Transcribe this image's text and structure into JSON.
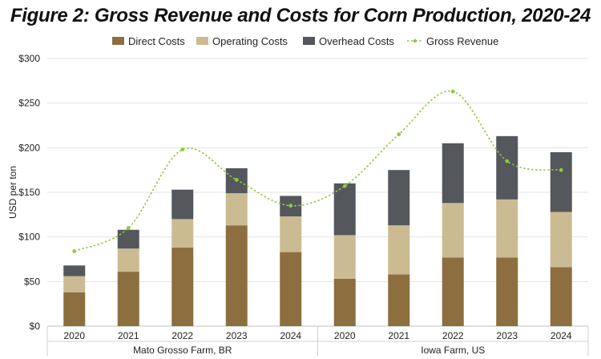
{
  "chart_data": {
    "type": "bar",
    "title": "Figure 2:  Gross Revenue and Costs for Corn Production, 2020-24",
    "ylabel": "USD per ton",
    "xlabel": "",
    "ylim": [
      0,
      300
    ],
    "yticks": [
      0,
      50,
      100,
      150,
      200,
      250,
      300
    ],
    "ytick_labels": [
      "$0",
      "$50",
      "$100",
      "$150",
      "$200",
      "$250",
      "$300"
    ],
    "grid": true,
    "legend_position": "top",
    "groups": [
      {
        "name": "Mato Grosso Farm, BR",
        "categories": [
          "2020",
          "2021",
          "2022",
          "2023",
          "2024"
        ]
      },
      {
        "name": "Iowa Farm, US",
        "categories": [
          "2020",
          "2021",
          "2022",
          "2023",
          "2024"
        ]
      }
    ],
    "categories": [
      "2020",
      "2021",
      "2022",
      "2023",
      "2024",
      "2020",
      "2021",
      "2022",
      "2023",
      "2024"
    ],
    "series": [
      {
        "name": "Direct Costs",
        "kind": "stacked-bar",
        "color": "#8c6e3f",
        "values": [
          38,
          61,
          88,
          113,
          83,
          53,
          58,
          77,
          77,
          66
        ]
      },
      {
        "name": "Operating Costs",
        "kind": "stacked-bar",
        "color": "#cbbb92",
        "values": [
          18,
          26,
          32,
          36,
          40,
          49,
          55,
          61,
          65,
          62
        ]
      },
      {
        "name": "Overhead Costs",
        "kind": "stacked-bar",
        "color": "#54575c",
        "values": [
          12,
          21,
          33,
          28,
          23,
          58,
          62,
          67,
          71,
          67
        ]
      },
      {
        "name": "Gross Revenue",
        "kind": "line",
        "color": "#8fca3f",
        "values": [
          84,
          110,
          198,
          164,
          135,
          157,
          215,
          263,
          185,
          175
        ]
      }
    ]
  }
}
